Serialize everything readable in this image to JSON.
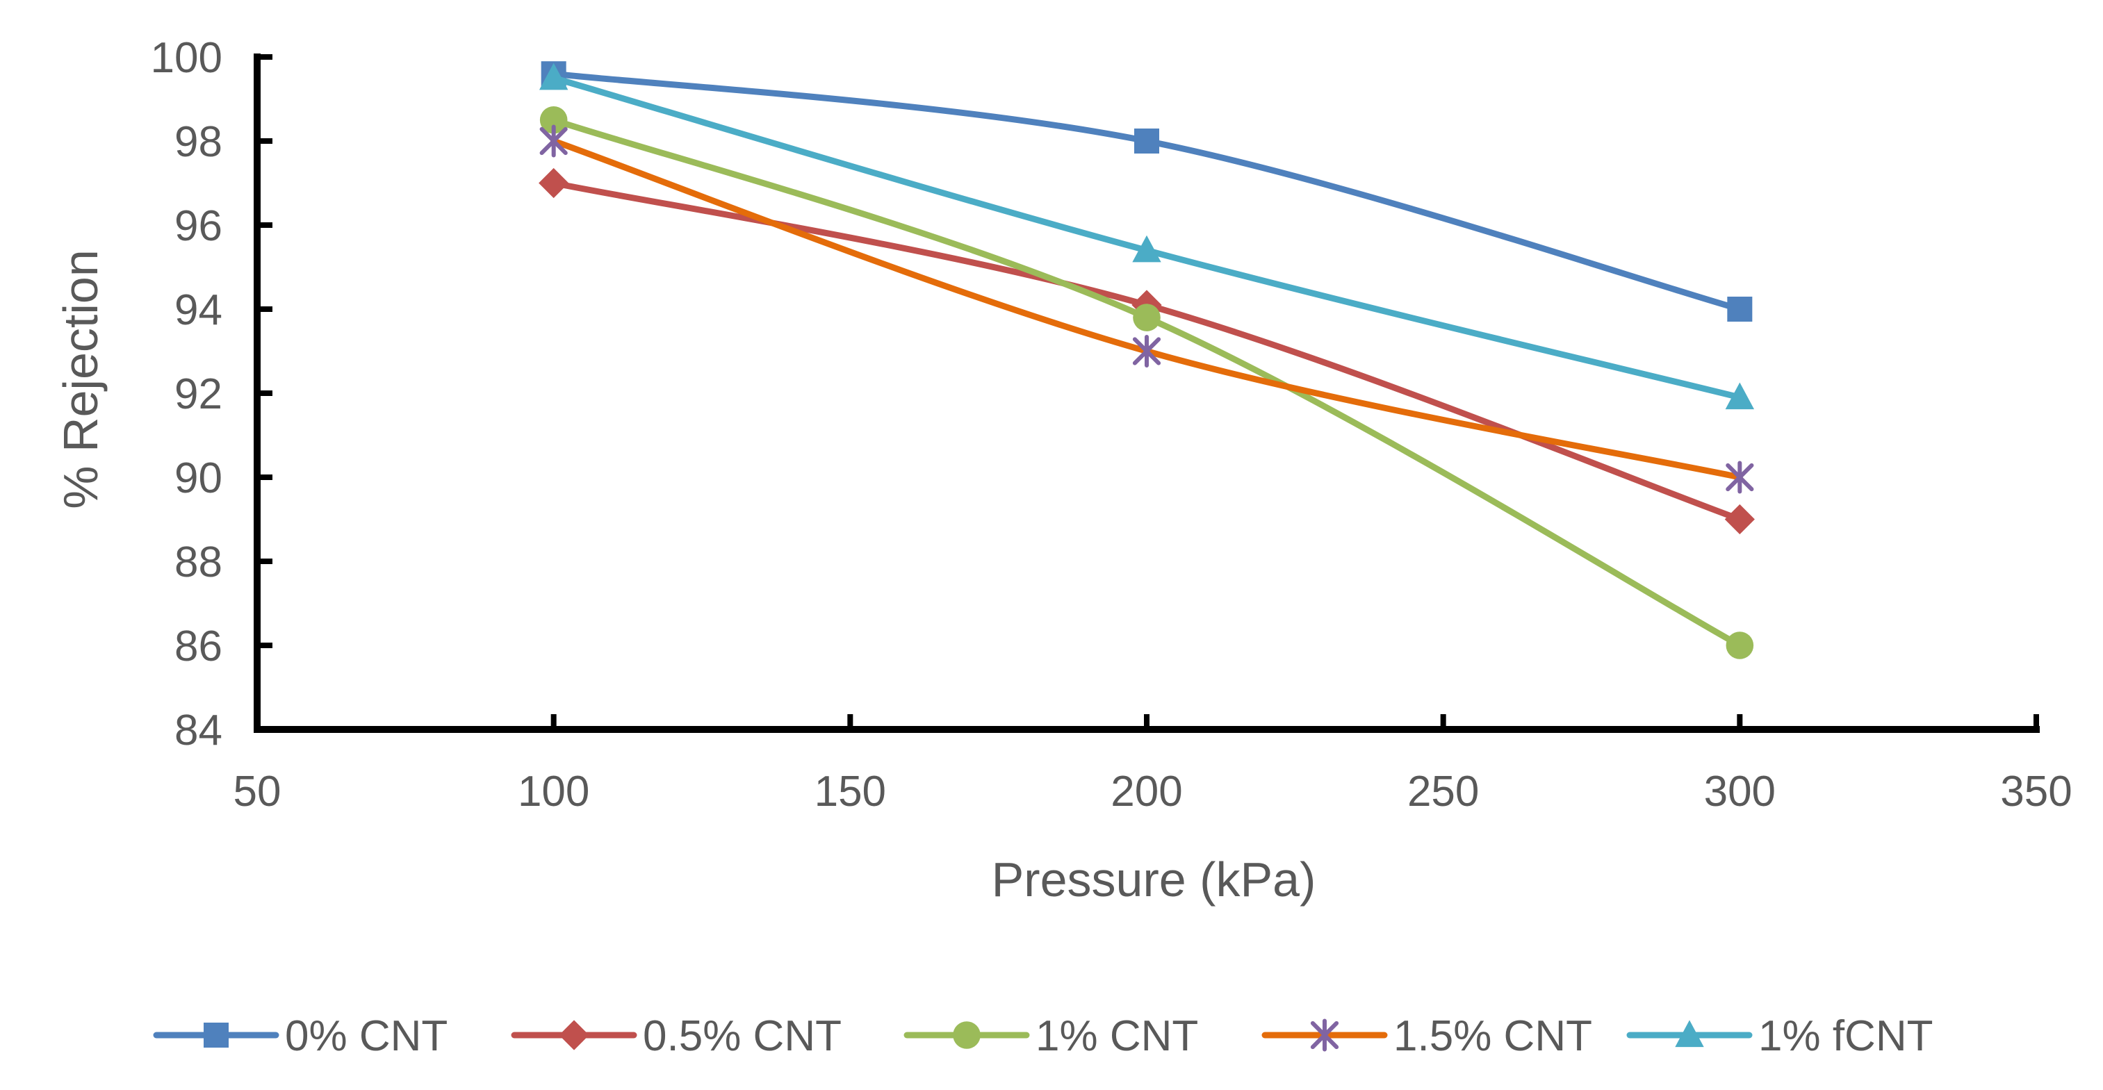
{
  "chart_data": {
    "type": "line",
    "smooth": true,
    "title": "",
    "xlabel": "Pressure (kPa)",
    "ylabel": "% Rejection",
    "xlim": [
      50,
      350
    ],
    "ylim": [
      84,
      100
    ],
    "x_ticks": [
      50,
      100,
      150,
      200,
      250,
      300,
      350
    ],
    "y_ticks": [
      84,
      86,
      88,
      90,
      92,
      94,
      96,
      98,
      100
    ],
    "grid": false,
    "legend_position": "bottom",
    "x": [
      100,
      200,
      300
    ],
    "series": [
      {
        "name": "0% CNT",
        "values": [
          99.6,
          98.0,
          94.0
        ],
        "color": "#4F81BD",
        "marker": "square"
      },
      {
        "name": "0.5% CNT",
        "values": [
          97.0,
          94.1,
          89.0
        ],
        "color": "#C0504D",
        "marker": "diamond"
      },
      {
        "name": "1% CNT",
        "values": [
          98.5,
          93.8,
          86.0
        ],
        "color": "#9BBB59",
        "marker": "circle"
      },
      {
        "name": "1.5% CNT",
        "values": [
          98.0,
          93.0,
          90.0
        ],
        "color": "#E46C0A",
        "marker": "star",
        "marker_color": "#8064A2"
      },
      {
        "name": "1% fCNT",
        "values": [
          99.5,
          95.4,
          91.9
        ],
        "color": "#4BACC6",
        "marker": "triangle"
      }
    ]
  }
}
